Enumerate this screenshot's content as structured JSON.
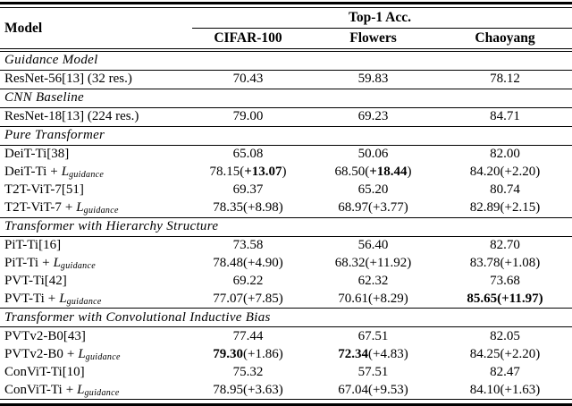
{
  "colors": {
    "text": "#000000",
    "rule": "#000000",
    "background": "#ffffff"
  },
  "punct": {
    "open": "(",
    "close": ")"
  },
  "loss_term": {
    "operator": "+",
    "symbol": "L",
    "subscript": "guidance"
  },
  "header": {
    "model_label": "Model",
    "span_label": "Top-1 Acc.",
    "columns": [
      "CIFAR-100",
      "Flowers",
      "Chaoyang"
    ]
  },
  "rows": [
    {
      "type": "section",
      "label": "Guidance Model"
    },
    {
      "type": "data",
      "model": "ResNet-56[13] (32 res.)",
      "cells": [
        {
          "v": "70.43"
        },
        {
          "v": "59.83"
        },
        {
          "v": "78.12"
        }
      ]
    },
    {
      "type": "section",
      "label": "CNN Baseline"
    },
    {
      "type": "data",
      "model": "ResNet-18[13] (224 res.)",
      "cells": [
        {
          "v": "79.00"
        },
        {
          "v": "69.23"
        },
        {
          "v": "84.71"
        }
      ]
    },
    {
      "type": "section",
      "label": "Pure Transformer"
    },
    {
      "type": "data",
      "model": "DeiT-Ti[38]",
      "cells": [
        {
          "v": "65.08"
        },
        {
          "v": "50.06"
        },
        {
          "v": "82.00"
        }
      ]
    },
    {
      "type": "data",
      "model": "DeiT-Ti",
      "loss": true,
      "cells": [
        {
          "v": "78.15",
          "gain": "+13.07",
          "gain_bold": true
        },
        {
          "v": "68.50",
          "gain": "+18.44",
          "gain_bold": true
        },
        {
          "v": "84.20",
          "gain": "+2.20"
        }
      ]
    },
    {
      "type": "data",
      "model": "T2T-ViT-7[51]",
      "cells": [
        {
          "v": "69.37"
        },
        {
          "v": "65.20"
        },
        {
          "v": "80.74"
        }
      ]
    },
    {
      "type": "data",
      "model": "T2T-ViT-7",
      "loss": true,
      "cells": [
        {
          "v": "78.35",
          "gain": "+8.98"
        },
        {
          "v": "68.97",
          "gain": "+3.77"
        },
        {
          "v": "82.89",
          "gain": "+2.15"
        }
      ]
    },
    {
      "type": "section",
      "label": "Transformer with Hierarchy Structure"
    },
    {
      "type": "data",
      "model": "PiT-Ti[16]",
      "cells": [
        {
          "v": "73.58"
        },
        {
          "v": "56.40"
        },
        {
          "v": "82.70"
        }
      ]
    },
    {
      "type": "data",
      "model": "PiT-Ti",
      "loss": true,
      "cells": [
        {
          "v": "78.48",
          "gain": "+4.90"
        },
        {
          "v": "68.32",
          "gain": "+11.92"
        },
        {
          "v": "83.78",
          "gain": "+1.08"
        }
      ]
    },
    {
      "type": "data",
      "model": "PVT-Ti[42]",
      "cells": [
        {
          "v": "69.22"
        },
        {
          "v": "62.32"
        },
        {
          "v": "73.68"
        }
      ]
    },
    {
      "type": "data",
      "model": "PVT-Ti",
      "loss": true,
      "cells": [
        {
          "v": "77.07",
          "gain": "+7.85"
        },
        {
          "v": "70.61",
          "gain": "+8.29"
        },
        {
          "v": "85.65",
          "gain": "+11.97",
          "all_bold": true
        }
      ]
    },
    {
      "type": "section",
      "label": "Transformer with Convolutional Inductive Bias"
    },
    {
      "type": "data",
      "model": "PVTv2-B0[43]",
      "cells": [
        {
          "v": "77.44"
        },
        {
          "v": "67.51"
        },
        {
          "v": "82.05"
        }
      ]
    },
    {
      "type": "data",
      "model": "PVTv2-B0",
      "loss": true,
      "cells": [
        {
          "v": "79.30",
          "v_bold": true,
          "gain": "+1.86"
        },
        {
          "v": "72.34",
          "v_bold": true,
          "gain": "+4.83"
        },
        {
          "v": "84.25",
          "gain": "+2.20"
        }
      ]
    },
    {
      "type": "data",
      "model": "ConViT-Ti[10]",
      "cells": [
        {
          "v": "75.32"
        },
        {
          "v": "57.51"
        },
        {
          "v": "82.47"
        }
      ]
    },
    {
      "type": "data",
      "model": "ConViT-Ti",
      "loss": true,
      "cells": [
        {
          "v": "78.95",
          "gain": "+3.63"
        },
        {
          "v": "67.04",
          "gain": "+9.53"
        },
        {
          "v": "84.10",
          "gain": "+1.63"
        }
      ]
    }
  ]
}
